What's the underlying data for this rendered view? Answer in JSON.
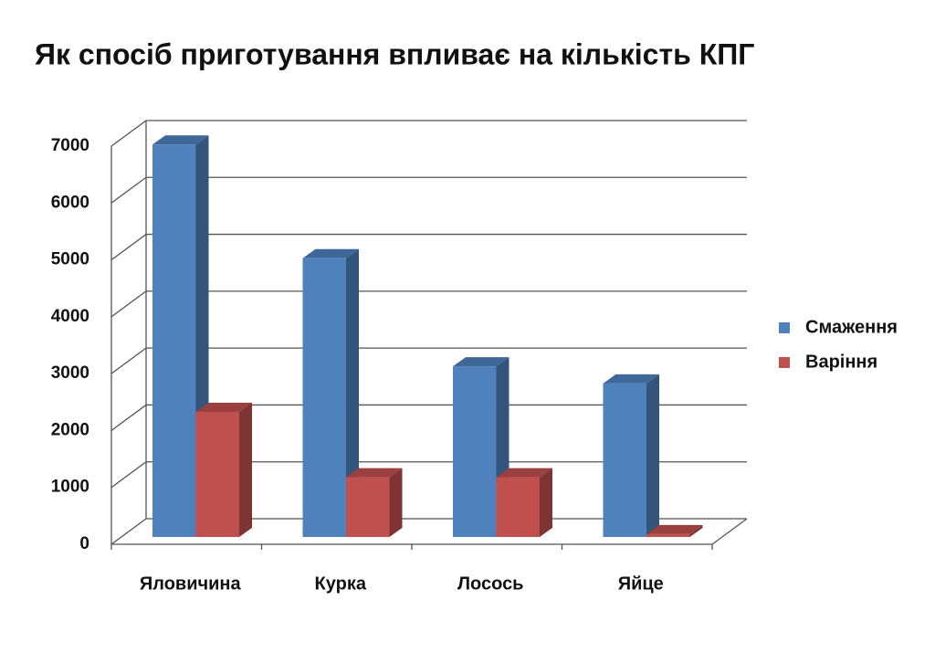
{
  "chart_data": {
    "type": "bar3d",
    "title": "Як спосіб приготування впливає на кількість КПГ",
    "categories": [
      "Яловичина",
      "Курка",
      "Лосось",
      "Яйце"
    ],
    "series": [
      {
        "name": "Смаження",
        "color": "#4f81bd",
        "values": [
          6900,
          4900,
          3000,
          2700
        ]
      },
      {
        "name": "Варіння",
        "color": "#c0504d",
        "values": [
          2200,
          1050,
          1050,
          50
        ]
      }
    ],
    "ylim": [
      0,
      7000
    ],
    "yticks": [
      0,
      1000,
      2000,
      3000,
      4000,
      5000,
      6000,
      7000
    ],
    "grid": true,
    "legend": "right"
  }
}
